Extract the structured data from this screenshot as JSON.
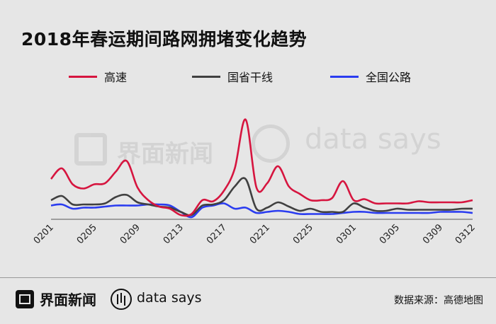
{
  "title": "2018年春运期间路网拥堵变化趋势",
  "brand": {
    "name": "界面新闻",
    "tagline": "data says"
  },
  "source": "数据来源：高德地图",
  "chart_data": {
    "type": "line",
    "title": "2018年春运期间路网拥堵变化趋势",
    "xlabel": "",
    "ylabel": "",
    "x": [
      "0201",
      "0202",
      "0203",
      "0204",
      "0205",
      "0206",
      "0207",
      "0208",
      "0209",
      "0210",
      "0211",
      "0212",
      "0213",
      "0214",
      "0215",
      "0216",
      "0217",
      "0218",
      "0219",
      "0220",
      "0221",
      "0222",
      "0223",
      "0224",
      "0225",
      "0226",
      "0227",
      "0228",
      "0301",
      "0302",
      "0303",
      "0304",
      "0305",
      "0306",
      "0307",
      "0308",
      "0309",
      "0310",
      "0311",
      "0312"
    ],
    "x_ticks": [
      "0201",
      "0205",
      "0209",
      "0213",
      "0217",
      "0221",
      "0225",
      "0301",
      "0305",
      "0309",
      "0312"
    ],
    "ylim": [
      0,
      100
    ],
    "y_axis_labels": false,
    "grid": false,
    "legend_position": "top",
    "series": [
      {
        "name": "高速",
        "color": "#d6153f",
        "values": [
          38,
          48,
          33,
          29,
          33,
          34,
          45,
          55,
          30,
          18,
          12,
          10,
          4,
          5,
          18,
          17,
          27,
          48,
          94,
          30,
          34,
          50,
          31,
          24,
          18,
          18,
          20,
          36,
          18,
          19,
          15,
          15,
          15,
          15,
          17,
          16,
          16,
          16,
          16,
          18
        ]
      },
      {
        "name": "国省干线",
        "color": "#404040",
        "values": [
          18,
          22,
          14,
          14,
          14,
          15,
          21,
          23,
          16,
          14,
          12,
          11,
          7,
          4,
          13,
          14,
          18,
          31,
          38,
          10,
          11,
          16,
          12,
          8,
          10,
          7,
          7,
          7,
          15,
          11,
          8,
          8,
          10,
          9,
          9,
          9,
          9,
          9,
          10,
          10
        ]
      },
      {
        "name": "全国公路",
        "color": "#2a3cf0",
        "values": [
          13,
          14,
          10,
          11,
          11,
          12,
          13,
          13,
          13,
          14,
          14,
          13,
          7,
          2,
          11,
          13,
          15,
          10,
          11,
          6,
          7,
          8,
          7,
          5,
          5,
          5,
          5,
          6,
          7,
          7,
          6,
          6,
          6,
          6,
          6,
          6,
          7,
          7,
          7,
          6
        ]
      }
    ]
  }
}
